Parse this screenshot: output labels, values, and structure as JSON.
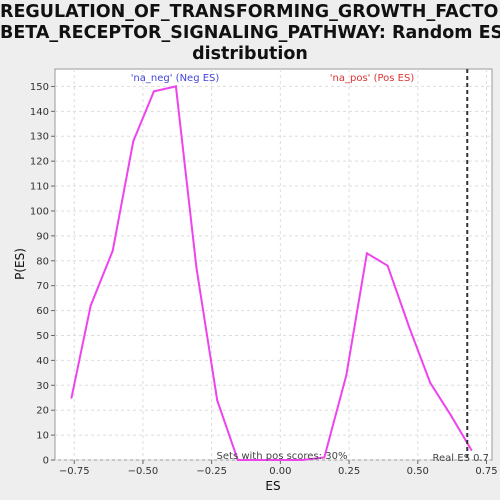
{
  "colors": {
    "background": "#eeeeee",
    "plot_background": "#ffffff",
    "series_line": "#ee44ee",
    "neg_label": "#4444dd",
    "pos_label": "#dd3333",
    "real_es_line": "#333333",
    "grid": "#dddddd"
  },
  "chart_data": {
    "type": "line",
    "title_lines": [
      "REGULATION_OF_TRANSFORMING_GROWTH_FACTOR_",
      "BETA_RECEPTOR_SIGNALING_PATHWAY: Random ES",
      "distribution"
    ],
    "xlabel": "ES",
    "ylabel": "P(ES)",
    "xlim": [
      -0.82,
      0.77
    ],
    "ylim": [
      0,
      157
    ],
    "x_ticks": [
      -0.75,
      -0.5,
      -0.25,
      0.0,
      0.25,
      0.5,
      0.75
    ],
    "x_tick_labels": [
      "−0.75",
      "−0.50",
      "−0.25",
      "0.00",
      "0.25",
      "0.50",
      "0.75"
    ],
    "y_ticks": [
      0,
      10,
      20,
      30,
      40,
      50,
      60,
      70,
      80,
      90,
      100,
      110,
      120,
      130,
      140,
      150
    ],
    "y_tick_labels": [
      "0",
      "10",
      "20",
      "30",
      "40",
      "50",
      "60",
      "70",
      "80",
      "90",
      "100",
      "110",
      "120",
      "130",
      "140",
      "150"
    ],
    "grid": true,
    "series": [
      {
        "x": [
          -0.76,
          -0.69,
          -0.61,
          -0.535,
          -0.46,
          -0.38,
          -0.305,
          -0.23,
          -0.155,
          -0.08,
          0.0,
          0.08,
          0.16,
          0.24,
          0.315,
          0.39,
          0.47,
          0.545,
          0.62,
          0.695
        ],
        "y": [
          25,
          62,
          84,
          128,
          148,
          150,
          77,
          24,
          0,
          0,
          0,
          0,
          1,
          34,
          83,
          78,
          53,
          31,
          18,
          4
        ]
      }
    ],
    "real_es": 0.68,
    "annotations": {
      "neg": "'na_neg' (Neg ES)",
      "pos": "'na_pos' (Pos ES)",
      "sets_with_pos": "Sets with pos scores: 30%",
      "real_es_label": "Real ES 0.7"
    }
  }
}
